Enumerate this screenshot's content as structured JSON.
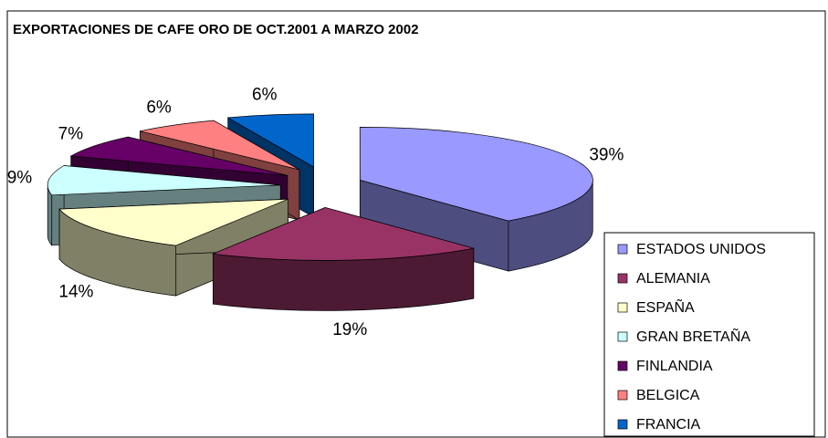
{
  "chart_data": {
    "type": "pie",
    "title": "EXPORTACIONES DE CAFE ORO DE OCT.2001 A MARZO 2002",
    "categories": [
      "ESTADOS UNIDOS",
      "ALEMANIA",
      "ESPAÑA",
      "GRAN BRETAÑA",
      "FINLANDIA",
      "BELGICA",
      "FRANCIA"
    ],
    "values": [
      39,
      19,
      14,
      9,
      7,
      6,
      6
    ],
    "value_labels": [
      "39%",
      "19%",
      "14%",
      "9%",
      "7%",
      "6%",
      "6%"
    ],
    "colors": [
      "#9999FF",
      "#993366",
      "#FFFFCC",
      "#CCFFFF",
      "#660066",
      "#FF8080",
      "#0066CC"
    ],
    "legend": "right"
  }
}
